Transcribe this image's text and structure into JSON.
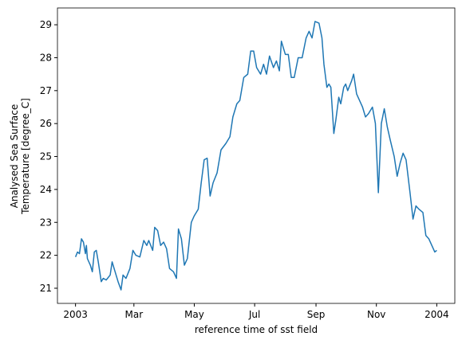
{
  "chart_data": {
    "type": "line",
    "xlabel": "reference time of sst field",
    "ylabel": [
      "Analysed Sea Surface",
      "Temperature [degree_C]"
    ],
    "color": "#1f77b4",
    "xlim": [
      -18.25,
      383.25
    ],
    "xticks": [
      {
        "value": 0,
        "label": "2003"
      },
      {
        "value": 59,
        "label": "Mar"
      },
      {
        "value": 120,
        "label": "May"
      },
      {
        "value": 181,
        "label": "Jul"
      },
      {
        "value": 243,
        "label": "Sep"
      },
      {
        "value": 304,
        "label": "Nov"
      },
      {
        "value": 365,
        "label": "2004"
      }
    ],
    "ylim": [
      20.54,
      29.51
    ],
    "yticks": [
      21,
      22,
      23,
      24,
      25,
      26,
      27,
      28,
      29
    ],
    "x": [
      0,
      2,
      4,
      6,
      8,
      10,
      11,
      12,
      15,
      17,
      19,
      21,
      23,
      26,
      28,
      31,
      35,
      37,
      40,
      43,
      46,
      48,
      51,
      55,
      58,
      61,
      65,
      69,
      72,
      74,
      78,
      80,
      83,
      86,
      89,
      92,
      95,
      99,
      102,
      104,
      107,
      110,
      113,
      117,
      120,
      124,
      127,
      130,
      133,
      136,
      139,
      143,
      147,
      152,
      156,
      159,
      163,
      166,
      170,
      174,
      177,
      180,
      183,
      187,
      190,
      193,
      196,
      200,
      203,
      206,
      208,
      212,
      215,
      218,
      221,
      225,
      229,
      233,
      236,
      239,
      242,
      246,
      249,
      251,
      254,
      256,
      258,
      261,
      263,
      266,
      268,
      271,
      273,
      275,
      279,
      281,
      284,
      287,
      290,
      293,
      296,
      300,
      303,
      306,
      309,
      312,
      315,
      318,
      322,
      325,
      328,
      331,
      334,
      338,
      341,
      344,
      347,
      351,
      354,
      357,
      360,
      363,
      365
    ],
    "values": [
      21.95,
      22.1,
      22.05,
      22.5,
      22.4,
      22.05,
      22.3,
      21.9,
      21.7,
      21.5,
      22.1,
      22.15,
      21.8,
      21.2,
      21.3,
      21.25,
      21.4,
      21.8,
      21.5,
      21.2,
      20.95,
      21.4,
      21.3,
      21.6,
      22.15,
      22.0,
      21.95,
      22.45,
      22.3,
      22.45,
      22.15,
      22.85,
      22.75,
      22.3,
      22.4,
      22.2,
      21.6,
      21.5,
      21.3,
      22.8,
      22.5,
      21.7,
      21.9,
      23.0,
      23.2,
      23.4,
      24.2,
      24.9,
      24.95,
      23.8,
      24.2,
      24.5,
      25.2,
      25.4,
      25.6,
      26.2,
      26.6,
      26.7,
      27.4,
      27.5,
      28.2,
      28.2,
      27.7,
      27.5,
      27.8,
      27.5,
      28.05,
      27.7,
      27.9,
      27.6,
      28.5,
      28.1,
      28.1,
      27.4,
      27.4,
      28.0,
      28.0,
      28.6,
      28.8,
      28.6,
      29.1,
      29.05,
      28.6,
      27.8,
      27.1,
      27.2,
      27.1,
      25.7,
      26.1,
      26.8,
      26.6,
      27.1,
      27.2,
      27.0,
      27.3,
      27.5,
      26.9,
      26.7,
      26.5,
      26.2,
      26.3,
      26.5,
      26.0,
      23.9,
      26.0,
      26.45,
      25.9,
      25.5,
      25.0,
      24.4,
      24.8,
      25.1,
      24.9,
      23.9,
      23.1,
      23.5,
      23.4,
      23.3,
      22.6,
      22.5,
      22.3,
      22.1,
      22.15
    ]
  }
}
